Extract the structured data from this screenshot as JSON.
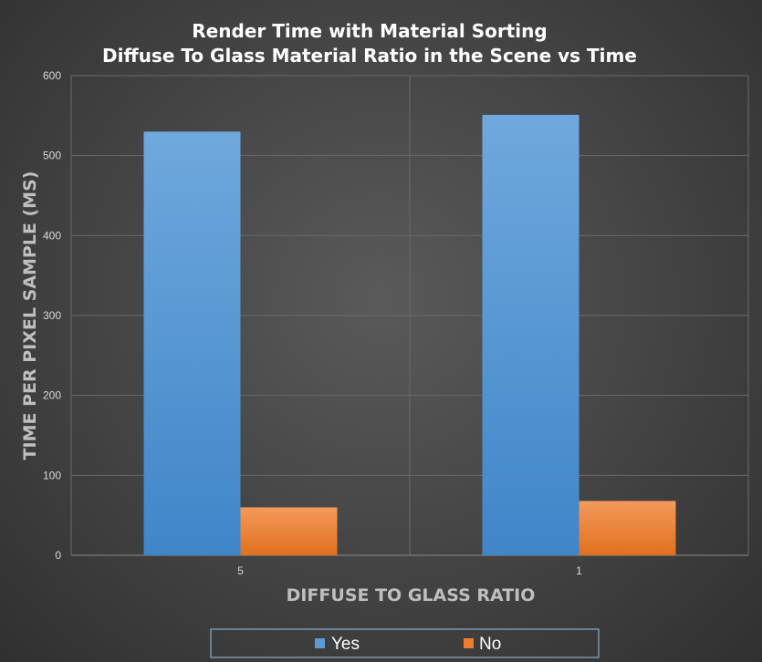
{
  "chart_data": {
    "type": "bar",
    "title_lines": [
      "Render Time with Material Sorting",
      "Diffuse To Glass Material Ratio in the Scene vs Time"
    ],
    "xlabel": "DIFFUSE TO GLASS RATIO",
    "ylabel": "TIME PER PIXEL SAMPLE (MS)",
    "categories": [
      "5",
      "1"
    ],
    "series": [
      {
        "name": "Yes",
        "values": [
          530,
          551
        ],
        "color": "#5b9bd5"
      },
      {
        "name": "No",
        "values": [
          60,
          68
        ],
        "color": "#ed7d31"
      }
    ],
    "ylim": [
      0,
      600
    ],
    "yticks": [
      0,
      100,
      200,
      300,
      400,
      500,
      600
    ],
    "grid": true,
    "legend_position": "bottom"
  }
}
